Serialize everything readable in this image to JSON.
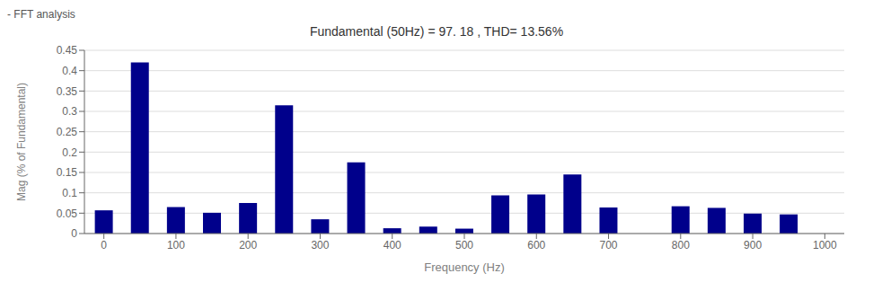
{
  "chart_data": {
    "type": "bar",
    "title": "Fundamental (50Hz) = 97. 18 , THD= 13.56%",
    "annotations": [
      "- FFT analysis"
    ],
    "x_label": "Frequency (Hz)",
    "y_label": "Mag (% of Fundamental)",
    "x": [
      0,
      50,
      100,
      150,
      200,
      250,
      300,
      350,
      400,
      450,
      500,
      550,
      600,
      650,
      700,
      750,
      800,
      850,
      900,
      950
    ],
    "values": [
      0.057,
      0.42,
      0.065,
      0.051,
      0.075,
      0.315,
      0.035,
      0.175,
      0.013,
      0.017,
      0.012,
      0.094,
      0.096,
      0.145,
      0.064,
      0.0,
      0.067,
      0.063,
      0.049,
      0.047
    ],
    "color": "#00008B",
    "xlim": [
      -27,
      1027
    ],
    "xticks": [
      0,
      100,
      200,
      300,
      400,
      500,
      600,
      700,
      800,
      900,
      1000
    ],
    "ylim": [
      0,
      0.45
    ],
    "yticks": [
      0,
      0.05,
      0.1,
      0.15,
      0.2,
      0.25,
      0.3,
      0.35,
      0.4,
      0.45
    ],
    "grid": true
  }
}
